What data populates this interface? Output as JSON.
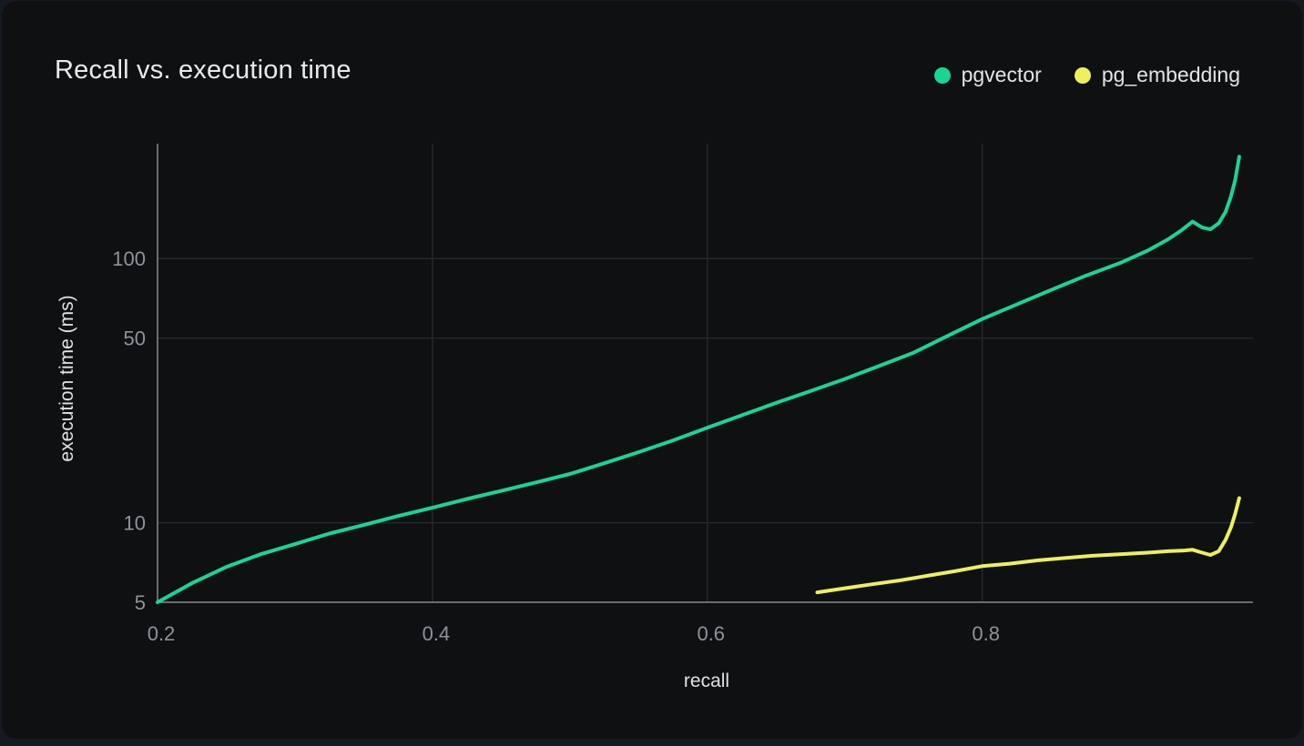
{
  "header": {
    "title": "Recall vs. execution time",
    "legend": [
      {
        "label": "pgvector",
        "color": "#1AD494",
        "icon": "legend-dot-green"
      },
      {
        "label": "pg_embedding",
        "color": "#EDEF5E",
        "icon": "legend-dot-yellow"
      }
    ]
  },
  "colors": {
    "page_background": "#151A22",
    "card_background": "#0E1011",
    "title_text": "#E8EAEC",
    "axis_line": "#858A92",
    "grid_line": "#25282D",
    "tick_text": "#8E939B",
    "axis_title_text": "#DFE2E5",
    "pgvector": "#1AD494",
    "pg_embedding": "#EDEF5E"
  },
  "chart_data": {
    "type": "line",
    "title": "Recall vs. execution time",
    "xlabel": "recall",
    "ylabel": "execution time (ms)",
    "x_scale": "linear",
    "y_scale": "log",
    "xlim": [
      0.2,
      0.997
    ],
    "ylim": [
      5,
      272
    ],
    "x_ticks": [
      0.2,
      0.4,
      0.6,
      0.8
    ],
    "y_ticks": [
      5,
      10,
      50,
      100
    ],
    "grid_x": [
      0.4,
      0.6,
      0.8
    ],
    "grid_y": [
      10,
      50,
      100
    ],
    "grid": true,
    "legend_position": "top-right",
    "series": [
      {
        "name": "pgvector",
        "color": "#1AD494",
        "points": [
          [
            0.2,
            5.0
          ],
          [
            0.225,
            5.9
          ],
          [
            0.25,
            6.8
          ],
          [
            0.275,
            7.6
          ],
          [
            0.3,
            8.3
          ],
          [
            0.325,
            9.1
          ],
          [
            0.35,
            9.8
          ],
          [
            0.375,
            10.6
          ],
          [
            0.4,
            11.4
          ],
          [
            0.425,
            12.3
          ],
          [
            0.45,
            13.2
          ],
          [
            0.475,
            14.2
          ],
          [
            0.5,
            15.3
          ],
          [
            0.525,
            16.8
          ],
          [
            0.55,
            18.5
          ],
          [
            0.575,
            20.5
          ],
          [
            0.6,
            22.9
          ],
          [
            0.625,
            25.5
          ],
          [
            0.65,
            28.4
          ],
          [
            0.675,
            31.5
          ],
          [
            0.7,
            35.0
          ],
          [
            0.725,
            39.2
          ],
          [
            0.75,
            44.0
          ],
          [
            0.775,
            51.0
          ],
          [
            0.8,
            59.0
          ],
          [
            0.825,
            67.0
          ],
          [
            0.85,
            76.0
          ],
          [
            0.875,
            86.0
          ],
          [
            0.9,
            96.0
          ],
          [
            0.92,
            107.0
          ],
          [
            0.935,
            118.0
          ],
          [
            0.945,
            128.0
          ],
          [
            0.953,
            138.0
          ],
          [
            0.96,
            131.0
          ],
          [
            0.966,
            129.0
          ],
          [
            0.972,
            136.0
          ],
          [
            0.977,
            150.0
          ],
          [
            0.981,
            172.0
          ],
          [
            0.984,
            198.0
          ],
          [
            0.987,
            243.0
          ]
        ]
      },
      {
        "name": "pg_embedding",
        "color": "#EDEF5E",
        "points": [
          [
            0.68,
            5.45
          ],
          [
            0.7,
            5.65
          ],
          [
            0.72,
            5.85
          ],
          [
            0.74,
            6.05
          ],
          [
            0.76,
            6.3
          ],
          [
            0.78,
            6.55
          ],
          [
            0.8,
            6.85
          ],
          [
            0.82,
            7.0
          ],
          [
            0.84,
            7.2
          ],
          [
            0.86,
            7.35
          ],
          [
            0.88,
            7.5
          ],
          [
            0.9,
            7.6
          ],
          [
            0.92,
            7.7
          ],
          [
            0.935,
            7.8
          ],
          [
            0.947,
            7.85
          ],
          [
            0.953,
            7.9
          ],
          [
            0.96,
            7.7
          ],
          [
            0.966,
            7.55
          ],
          [
            0.972,
            7.8
          ],
          [
            0.977,
            8.6
          ],
          [
            0.981,
            9.6
          ],
          [
            0.984,
            10.8
          ],
          [
            0.987,
            12.4
          ]
        ]
      }
    ]
  }
}
